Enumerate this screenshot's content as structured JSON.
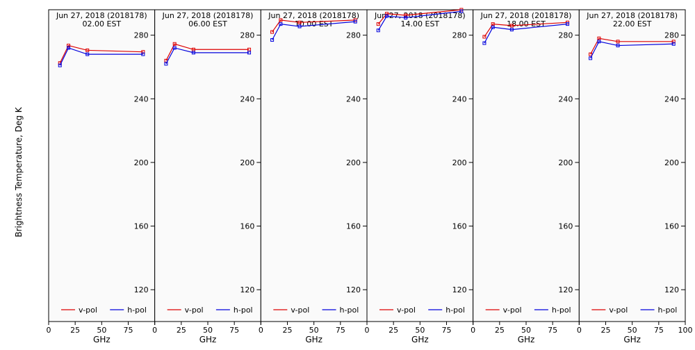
{
  "figure": {
    "ylabel": "Brightness Temperature, Deg K",
    "xlabel": "GHz"
  },
  "colors": {
    "v": "#dd0000",
    "h": "#0000dd"
  },
  "chart_data": {
    "type": "line",
    "ylabel": "Brightness Temperature, Deg K",
    "xlabel": "GHz",
    "ylim": [
      100,
      296
    ],
    "xlim": [
      0,
      100
    ],
    "yticks": [
      120,
      160,
      200,
      240,
      280
    ],
    "xtick_labels": [
      "0",
      "25",
      "50",
      "75",
      "100"
    ],
    "legend": [
      "v-pol",
      "h-pol"
    ],
    "x": [
      10.65,
      18.7,
      36.5,
      89.0
    ],
    "panels": [
      {
        "title": "Jun 27, 2018 (2018178)",
        "subtitle": "02.00 EST",
        "series": [
          {
            "name": "v-pol",
            "values": [
              262.5,
              273.5,
              270.5,
              269.5
            ]
          },
          {
            "name": "h-pol",
            "values": [
              261.0,
              272.0,
              268.0,
              268.0
            ]
          }
        ]
      },
      {
        "title": "Jun 27, 2018 (2018178)",
        "subtitle": "06.00 EST",
        "series": [
          {
            "name": "v-pol",
            "values": [
              264.0,
              274.5,
              271.0,
              271.0
            ]
          },
          {
            "name": "h-pol",
            "values": [
              262.0,
              272.0,
              269.0,
              269.0
            ]
          }
        ]
      },
      {
        "title": "Jun 27, 2018 (2018178)",
        "subtitle": "10.00 EST",
        "series": [
          {
            "name": "v-pol",
            "values": [
              282.0,
              289.5,
              288.0,
              289.5
            ]
          },
          {
            "name": "h-pol",
            "values": [
              277.0,
              287.0,
              285.5,
              288.5
            ]
          }
        ]
      },
      {
        "title": "Jun 27, 2018 (2018178)",
        "subtitle": "14.00 EST",
        "series": [
          {
            "name": "v-pol",
            "values": [
              287.0,
              293.5,
              292.5,
              296.0
            ]
          },
          {
            "name": "h-pol",
            "values": [
              283.0,
              292.0,
              291.0,
              295.0
            ]
          }
        ]
      },
      {
        "title": "Jun 27, 2018 (2018178)",
        "subtitle": "18.00 EST",
        "series": [
          {
            "name": "v-pol",
            "values": [
              279.0,
              287.0,
              286.0,
              288.0
            ]
          },
          {
            "name": "h-pol",
            "values": [
              275.0,
              285.0,
              283.5,
              287.0
            ]
          }
        ]
      },
      {
        "title": "Jun 27, 2018 (2018178)",
        "subtitle": "22.00 EST",
        "series": [
          {
            "name": "v-pol",
            "values": [
              268.0,
              278.0,
              276.0,
              276.0
            ]
          },
          {
            "name": "h-pol",
            "values": [
              265.5,
              276.0,
              273.5,
              274.5
            ]
          }
        ]
      }
    ]
  }
}
